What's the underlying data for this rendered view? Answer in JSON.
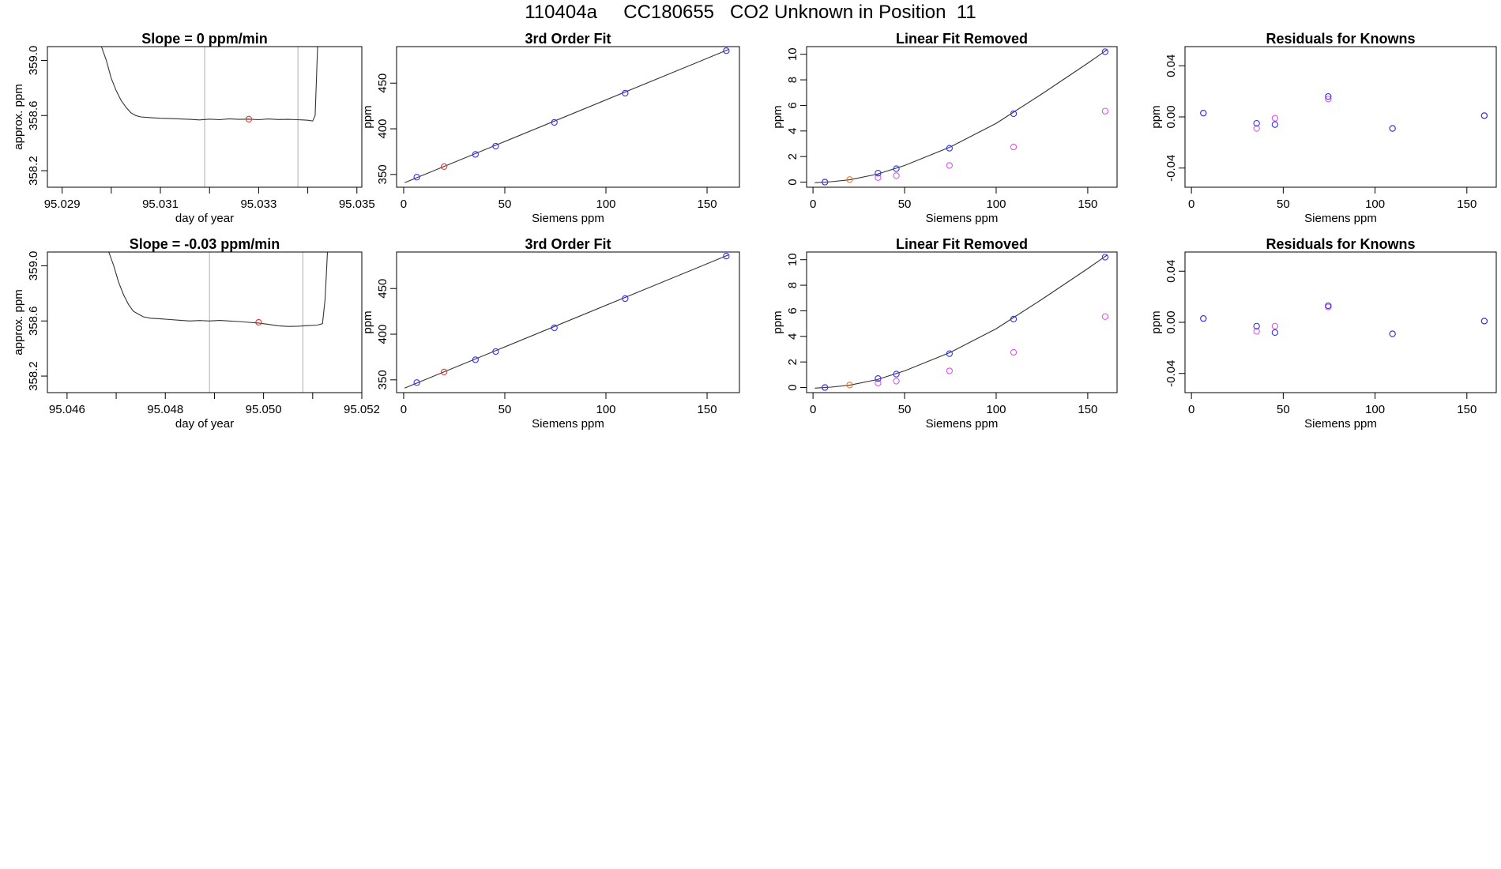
{
  "figure": {
    "title": "110404a     CC180655   CO2 Unknown in Position  11"
  },
  "colors": {
    "axis": "#000000",
    "line": "#333333",
    "guide": "#bbbbbb",
    "known": "#3333ee",
    "highlight": "#ee3333",
    "raw": "#dd55ee",
    "ref": "#ee7733"
  },
  "chart_data": [
    {
      "type": "line",
      "title": "Slope =  0  ppm/min",
      "xlabel": "day of year",
      "ylabel": "approx. ppm",
      "xlim": [
        95.0287,
        95.0351
      ],
      "ylim": [
        358.08,
        359.1
      ],
      "xticks": [
        95.029,
        95.03,
        95.031,
        95.032,
        95.033,
        95.034,
        95.035
      ],
      "xtick_labels": [
        "95.029",
        "",
        "95.031",
        "",
        "95.033",
        "",
        "95.035"
      ],
      "yticks": [
        358.2,
        358.6,
        359.0
      ],
      "ytick_labels": [
        "358.2",
        "358.6",
        "359.0"
      ],
      "vlines": [
        95.0319,
        95.0338
      ],
      "marker": {
        "x": 95.0328,
        "y": 358.574
      },
      "series": [
        {
          "points": [
            [
              95.0298,
              359.1
            ],
            [
              95.0299,
              359.0
            ],
            [
              95.03,
              358.87
            ],
            [
              95.0301,
              358.78
            ],
            [
              95.0302,
              358.71
            ],
            [
              95.0303,
              358.66
            ],
            [
              95.0304,
              358.62
            ],
            [
              95.0305,
              358.6
            ],
            [
              95.0306,
              358.59
            ],
            [
              95.0308,
              358.585
            ],
            [
              95.031,
              358.58
            ],
            [
              95.0312,
              358.578
            ],
            [
              95.0314,
              358.575
            ],
            [
              95.0316,
              358.572
            ],
            [
              95.0318,
              358.568
            ],
            [
              95.032,
              358.574
            ],
            [
              95.0322,
              358.57
            ],
            [
              95.0324,
              358.576
            ],
            [
              95.0326,
              358.572
            ],
            [
              95.0328,
              358.574
            ],
            [
              95.033,
              358.57
            ],
            [
              95.0332,
              358.575
            ],
            [
              95.0334,
              358.571
            ],
            [
              95.0336,
              358.572
            ],
            [
              95.0338,
              358.57
            ],
            [
              95.034,
              358.566
            ],
            [
              95.0341,
              358.56
            ],
            [
              95.03415,
              358.6
            ],
            [
              95.03418,
              358.9
            ],
            [
              95.0342,
              359.1
            ]
          ]
        }
      ]
    },
    {
      "type": "scatter",
      "title": "3rd Order Fit",
      "xlabel": "Siemens ppm",
      "ylabel": "ppm",
      "xlim": [
        -3.5,
        166
      ],
      "ylim": [
        336,
        490
      ],
      "xticks": [
        0,
        50,
        100,
        150
      ],
      "xtick_labels": [
        "0",
        "50",
        "100",
        "150"
      ],
      "yticks": [
        350,
        400,
        450
      ],
      "ytick_labels": [
        "350",
        "400",
        "450"
      ],
      "knowns": [
        [
          6.5,
          347.0
        ],
        [
          35.5,
          372.0
        ],
        [
          45.5,
          381.0
        ],
        [
          74.5,
          407.0
        ],
        [
          109.5,
          439.0
        ],
        [
          159.5,
          485.5
        ]
      ],
      "unknown": [
        [
          20.0,
          358.6
        ]
      ],
      "fit_line": [
        [
          0.5,
          341.0
        ],
        [
          160.5,
          486.7
        ]
      ]
    },
    {
      "type": "scatter",
      "title": "Linear Fit Removed",
      "xlabel": "Siemens ppm",
      "ylabel": "ppm",
      "xlim": [
        -3.5,
        166
      ],
      "ylim": [
        -0.4,
        10.6
      ],
      "xticks": [
        0,
        50,
        100,
        150
      ],
      "xtick_labels": [
        "0",
        "50",
        "100",
        "150"
      ],
      "yticks": [
        0,
        2,
        4,
        6,
        8,
        10
      ],
      "ytick_labels": [
        "0",
        "2",
        "4",
        "6",
        "8",
        "10"
      ],
      "knowns": [
        [
          6.5,
          0.0
        ],
        [
          35.5,
          0.7
        ],
        [
          45.5,
          1.05
        ],
        [
          74.5,
          2.65
        ],
        [
          109.5,
          5.35
        ],
        [
          159.5,
          10.2
        ]
      ],
      "raw": [
        [
          6.5,
          0.0
        ],
        [
          35.5,
          0.35
        ],
        [
          45.5,
          0.5
        ],
        [
          74.5,
          1.3
        ],
        [
          109.5,
          2.75
        ],
        [
          159.5,
          5.55
        ]
      ],
      "unknown": [
        [
          20.0,
          0.2
        ]
      ],
      "curve": [
        [
          1.0,
          -0.05
        ],
        [
          10.0,
          0.03
        ],
        [
          20.0,
          0.18
        ],
        [
          35.0,
          0.62
        ],
        [
          50.0,
          1.3
        ],
        [
          75.0,
          2.75
        ],
        [
          100.0,
          4.6
        ],
        [
          125.0,
          6.9
        ],
        [
          150.0,
          9.3
        ],
        [
          160.5,
          10.35
        ]
      ]
    },
    {
      "type": "scatter",
      "title": "Residuals for Knowns",
      "xlabel": "Siemens ppm",
      "ylabel": "ppm",
      "xlim": [
        -3.5,
        166
      ],
      "ylim": [
        -0.055,
        0.055
      ],
      "xticks": [
        0,
        50,
        100,
        150
      ],
      "xtick_labels": [
        "0",
        "50",
        "100",
        "150"
      ],
      "yticks": [
        -0.04,
        0.0,
        0.04
      ],
      "ytick_labels": [
        "-0.04",
        "0.00",
        "0.04"
      ],
      "knowns": [
        [
          6.5,
          0.003
        ],
        [
          35.5,
          -0.005
        ],
        [
          45.5,
          -0.006
        ],
        [
          74.5,
          0.016
        ],
        [
          109.5,
          -0.009
        ],
        [
          159.5,
          0.001
        ]
      ],
      "raw": [
        [
          6.5,
          0.003
        ],
        [
          35.5,
          -0.009
        ],
        [
          45.5,
          -0.001
        ],
        [
          74.5,
          0.014
        ],
        [
          109.5,
          -0.009
        ],
        [
          159.5,
          0.001
        ]
      ]
    },
    {
      "type": "line",
      "title": "Slope =  -0.03  ppm/min",
      "xlabel": "day of year",
      "ylabel": "approx. ppm",
      "xlim": [
        95.0456,
        95.052
      ],
      "ylim": [
        358.08,
        359.1
      ],
      "xticks": [
        95.046,
        95.047,
        95.048,
        95.049,
        95.05,
        95.051,
        95.052
      ],
      "xtick_labels": [
        "95.046",
        "",
        "95.048",
        "",
        "95.050",
        "",
        "95.052"
      ],
      "yticks": [
        358.2,
        358.6,
        359.0
      ],
      "ytick_labels": [
        "358.2",
        "358.6",
        "359.0"
      ],
      "vlines": [
        95.0489,
        95.0508
      ],
      "marker": {
        "x": 95.0499,
        "y": 358.59
      },
      "series": [
        {
          "points": [
            [
              95.04685,
              359.1
            ],
            [
              95.04695,
              359.0
            ],
            [
              95.04705,
              358.88
            ],
            [
              95.04715,
              358.79
            ],
            [
              95.04725,
              358.72
            ],
            [
              95.04735,
              358.67
            ],
            [
              95.04745,
              358.65
            ],
            [
              95.04755,
              358.63
            ],
            [
              95.0477,
              358.62
            ],
            [
              95.0479,
              358.615
            ],
            [
              95.0481,
              358.61
            ],
            [
              95.0483,
              358.605
            ],
            [
              95.0485,
              358.6
            ],
            [
              95.0487,
              358.603
            ],
            [
              95.0489,
              358.6
            ],
            [
              95.0491,
              358.604
            ],
            [
              95.0493,
              358.6
            ],
            [
              95.0495,
              358.596
            ],
            [
              95.0497,
              358.59
            ],
            [
              95.0499,
              358.585
            ],
            [
              95.0501,
              358.575
            ],
            [
              95.0503,
              358.565
            ],
            [
              95.0505,
              358.56
            ],
            [
              95.0507,
              358.562
            ],
            [
              95.0509,
              358.566
            ],
            [
              95.0511,
              358.57
            ],
            [
              95.0512,
              358.58
            ],
            [
              95.05125,
              358.75
            ],
            [
              95.05128,
              358.95
            ],
            [
              95.0513,
              359.1
            ]
          ]
        }
      ]
    },
    {
      "type": "scatter",
      "title": "3rd Order Fit",
      "xlabel": "Siemens ppm",
      "ylabel": "ppm",
      "xlim": [
        -3.5,
        166
      ],
      "ylim": [
        336,
        490
      ],
      "xticks": [
        0,
        50,
        100,
        150
      ],
      "xtick_labels": [
        "0",
        "50",
        "100",
        "150"
      ],
      "yticks": [
        350,
        400,
        450
      ],
      "ytick_labels": [
        "350",
        "400",
        "450"
      ],
      "knowns": [
        [
          6.5,
          347.0
        ],
        [
          35.5,
          372.0
        ],
        [
          45.5,
          381.0
        ],
        [
          74.5,
          407.0
        ],
        [
          109.5,
          439.0
        ],
        [
          159.5,
          485.5
        ]
      ],
      "unknown": [
        [
          20.0,
          358.6
        ]
      ],
      "fit_line": [
        [
          0.5,
          341.0
        ],
        [
          160.5,
          486.7
        ]
      ]
    },
    {
      "type": "scatter",
      "title": "Linear Fit Removed",
      "xlabel": "Siemens ppm",
      "ylabel": "ppm",
      "xlim": [
        -3.5,
        166
      ],
      "ylim": [
        -0.4,
        10.6
      ],
      "xticks": [
        0,
        50,
        100,
        150
      ],
      "xtick_labels": [
        "0",
        "50",
        "100",
        "150"
      ],
      "yticks": [
        0,
        2,
        4,
        6,
        8,
        10
      ],
      "ytick_labels": [
        "0",
        "2",
        "4",
        "6",
        "8",
        "10"
      ],
      "knowns": [
        [
          6.5,
          0.0
        ],
        [
          35.5,
          0.7
        ],
        [
          45.5,
          1.05
        ],
        [
          74.5,
          2.65
        ],
        [
          109.5,
          5.35
        ],
        [
          159.5,
          10.2
        ]
      ],
      "raw": [
        [
          6.5,
          0.0
        ],
        [
          35.5,
          0.35
        ],
        [
          45.5,
          0.5
        ],
        [
          74.5,
          1.3
        ],
        [
          109.5,
          2.75
        ],
        [
          159.5,
          5.55
        ]
      ],
      "unknown": [
        [
          20.0,
          0.2
        ]
      ],
      "curve": [
        [
          1.0,
          -0.05
        ],
        [
          10.0,
          0.03
        ],
        [
          20.0,
          0.18
        ],
        [
          35.0,
          0.62
        ],
        [
          50.0,
          1.3
        ],
        [
          75.0,
          2.75
        ],
        [
          100.0,
          4.6
        ],
        [
          125.0,
          6.9
        ],
        [
          150.0,
          9.3
        ],
        [
          160.5,
          10.35
        ]
      ]
    },
    {
      "type": "scatter",
      "title": "Residuals for Knowns",
      "xlabel": "Siemens ppm",
      "ylabel": "ppm",
      "xlim": [
        -3.5,
        166
      ],
      "ylim": [
        -0.055,
        0.055
      ],
      "xticks": [
        0,
        50,
        100,
        150
      ],
      "xtick_labels": [
        "0",
        "50",
        "100",
        "150"
      ],
      "yticks": [
        -0.04,
        0.0,
        0.04
      ],
      "ytick_labels": [
        "-0.04",
        "0.00",
        "0.04"
      ],
      "knowns": [
        [
          6.5,
          0.003
        ],
        [
          35.5,
          -0.003
        ],
        [
          45.5,
          -0.008
        ],
        [
          74.5,
          0.013
        ],
        [
          109.5,
          -0.009
        ],
        [
          159.5,
          0.001
        ]
      ],
      "raw": [
        [
          6.5,
          0.003
        ],
        [
          35.5,
          -0.007
        ],
        [
          45.5,
          -0.003
        ],
        [
          74.5,
          0.012
        ],
        [
          109.5,
          -0.009
        ],
        [
          159.5,
          0.001
        ]
      ]
    }
  ]
}
